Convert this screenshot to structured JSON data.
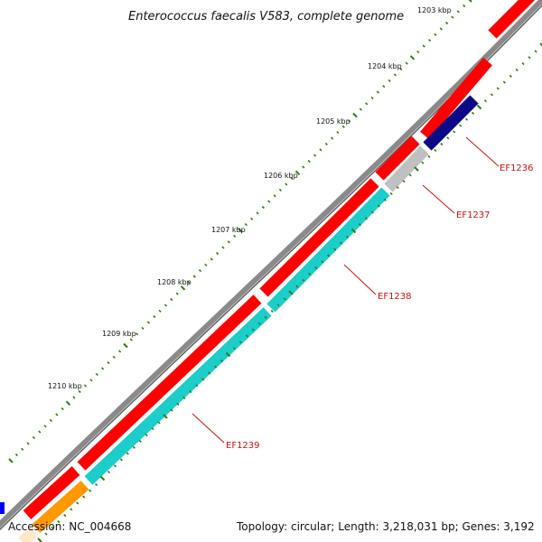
{
  "title": "Enterococcus faecalis V583, complete genome",
  "footer": {
    "accession": "Accession: NC_004668",
    "summary": "Topology: circular; Length: 3,218,031 bp; Genes: 3,192"
  },
  "scale": {
    "labels": [
      "1203 kbp",
      "1204 kbp",
      "1205 kbp",
      "1206 kbp",
      "1207 kbp",
      "1208 kbp",
      "1209 kbp",
      "1210 kbp"
    ]
  },
  "genes": [
    {
      "name": "EF1236",
      "color": "#0b0b88",
      "track": "inner"
    },
    {
      "name": "EF1237",
      "color": "#c0c0c0",
      "track": "inner"
    },
    {
      "name": "EF1238",
      "color": "#1ccdca",
      "track": "inner"
    },
    {
      "name": "EF1239",
      "color": "#1ccdca",
      "track": "inner"
    }
  ],
  "colors": {
    "backbone": "#8a8a8a",
    "forward_cds": "#ff0000",
    "inner_edge_orange": "#ff9900",
    "tick_green": "#2e7d0a",
    "label_red": "#cc1111",
    "edge_blue": "#0000ff"
  }
}
